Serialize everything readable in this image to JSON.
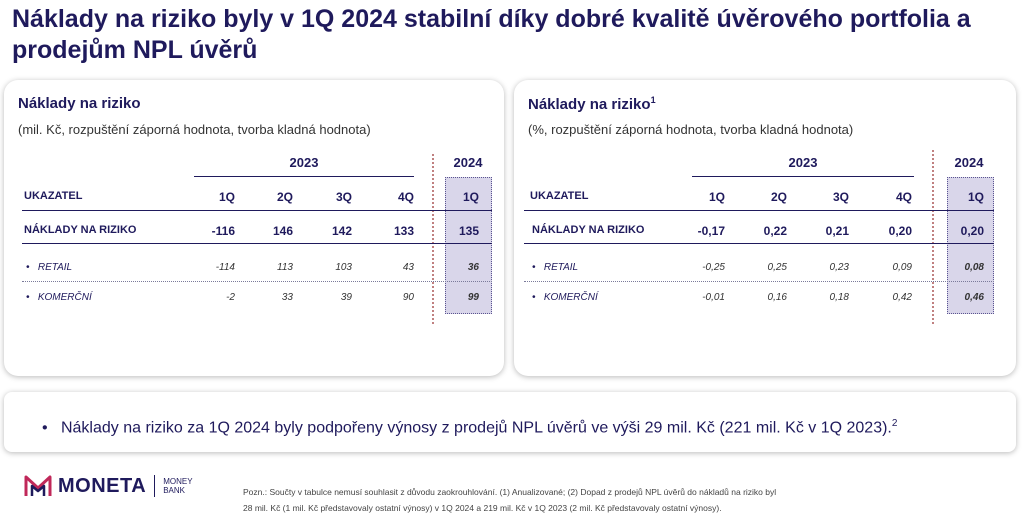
{
  "title": "Náklady na riziko byly v 1Q 2024 stabilní díky dobré kvalitě úvěrového portfolia a prodejům NPL úvěrů",
  "left": {
    "title": "Náklady na riziko",
    "subtitle": "(mil. Kč, rozpuštění záporná hodnota, tvorba kladná hodnota)",
    "year_prev": "2023",
    "year_curr": "2024",
    "header_label": "UKAZATEL",
    "quarters": [
      "1Q",
      "2Q",
      "3Q",
      "4Q",
      "1Q"
    ],
    "rows": [
      {
        "label": "NÁKLADY NA RIZIKO",
        "values": [
          "-116",
          "146",
          "142",
          "133",
          "135"
        ]
      },
      {
        "label": "RETAIL",
        "values": [
          "-114",
          "113",
          "103",
          "43",
          "36"
        ]
      },
      {
        "label": "KOMERČNÍ",
        "values": [
          "-2",
          "33",
          "39",
          "90",
          "99"
        ]
      }
    ]
  },
  "right": {
    "title": "Náklady na riziko",
    "title_sup": "1",
    "subtitle": "(%, rozpuštění záporná hodnota, tvorba kladná hodnota)",
    "year_prev": "2023",
    "year_curr": "2024",
    "header_label": "UKAZATEL",
    "quarters": [
      "1Q",
      "2Q",
      "3Q",
      "4Q",
      "1Q"
    ],
    "rows": [
      {
        "label": "NÁKLADY NA RIZIKO",
        "values": [
          "-0,17",
          "0,22",
          "0,21",
          "0,20",
          "0,20"
        ]
      },
      {
        "label": "RETAIL",
        "values": [
          "-0,25",
          "0,25",
          "0,23",
          "0,09",
          "0,08"
        ]
      },
      {
        "label": "KOMERČNÍ",
        "values": [
          "-0,01",
          "0,16",
          "0,18",
          "0,42",
          "0,46"
        ]
      }
    ]
  },
  "note": {
    "bullet": "•",
    "text": "Náklady na riziko za 1Q 2024 byly podpořeny výnosy z prodejů NPL úvěrů ve výši 29 mil. Kč (221 mil. Kč v 1Q 2023).",
    "sup": "2"
  },
  "logo": {
    "word": "MONETA",
    "line1": "MONEY",
    "line2": "BANK"
  },
  "footnote": {
    "line1": "Pozn.: Součty v tabulce nemusí souhlasit z důvodu zaokrouhlování. (1) Anualizované; (2) Dopad z prodejů NPL úvěrů do nákladů na riziko byl",
    "line2": "28 mil. Kč (1 mil. Kč představovaly ostatní výnosy) v 1Q 2024 a 219 mil. Kč v 1Q 2023 (2 mil. Kč představovaly ostatní výnosy)."
  },
  "colors": {
    "brand": "#1f1a5c",
    "highlight": "#d9d6ea",
    "divider": "#c08080"
  }
}
